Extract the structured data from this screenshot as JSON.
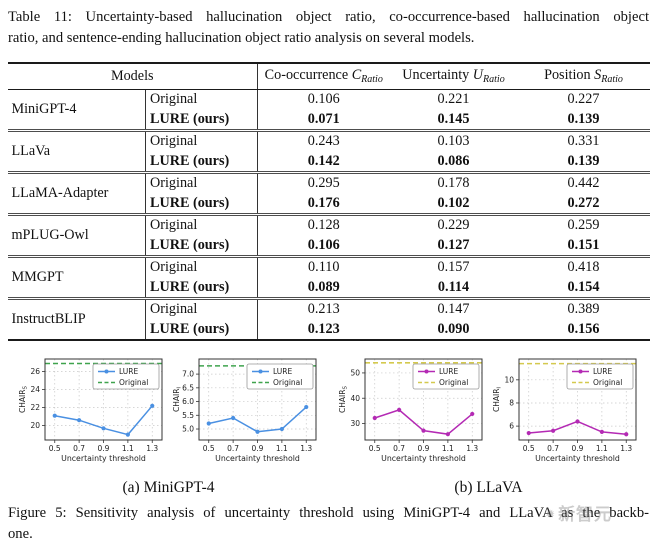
{
  "table_caption": {
    "lines": [
      "Table 11: Uncertainty-based hallucination object ratio, co-occurrence-based hallucination object",
      "ratio, and sentence-ending hallucination object ratio analysis on several models."
    ]
  },
  "table": {
    "models_header": "Models",
    "columns": [
      {
        "label": "Co-occurrence",
        "symbol": "C",
        "sub": "Ratio"
      },
      {
        "label": "Uncertainty",
        "symbol": "U",
        "sub": "Ratio"
      },
      {
        "label": "Position",
        "symbol": "S",
        "sub": "Ratio"
      }
    ],
    "variant_labels": [
      "Original",
      "LURE (ours)"
    ],
    "rows": [
      {
        "model": "MiniGPT-4",
        "original": [
          "0.106",
          "0.221",
          "0.227"
        ],
        "lure": [
          "0.071",
          "0.145",
          "0.139"
        ]
      },
      {
        "model": "LLaVa",
        "original": [
          "0.243",
          "0.103",
          "0.331"
        ],
        "lure": [
          "0.142",
          "0.086",
          "0.139"
        ]
      },
      {
        "model": "LLaMA-Adapter",
        "original": [
          "0.295",
          "0.178",
          "0.442"
        ],
        "lure": [
          "0.176",
          "0.102",
          "0.272"
        ]
      },
      {
        "model": "mPLUG-Owl",
        "original": [
          "0.128",
          "0.229",
          "0.259"
        ],
        "lure": [
          "0.106",
          "0.127",
          "0.151"
        ]
      },
      {
        "model": "MMGPT",
        "original": [
          "0.110",
          "0.157",
          "0.418"
        ],
        "lure": [
          "0.089",
          "0.114",
          "0.154"
        ]
      },
      {
        "model": "InstructBLIP",
        "original": [
          "0.213",
          "0.147",
          "0.389"
        ],
        "lure": [
          "0.123",
          "0.090",
          "0.156"
        ]
      }
    ]
  },
  "chart_data": [
    {
      "type": "line",
      "group": "a",
      "ylabel": "CHAIR",
      "ylabel_sub": "S",
      "xlabel": "Uncertainty threshold",
      "x": [
        0.5,
        0.7,
        0.9,
        1.1,
        1.3
      ],
      "yticks": [
        [
          20,
          "20"
        ],
        [
          22,
          "22"
        ],
        [
          24,
          "24"
        ],
        [
          26,
          "26"
        ]
      ],
      "ylim": [
        18.4,
        27.4
      ],
      "series": [
        {
          "name": "LURE",
          "values": [
            21.1,
            20.6,
            19.7,
            19.0,
            22.2
          ],
          "color": "#4a90e2"
        },
        {
          "name": "Original",
          "constant": 26.9,
          "color": "#3fa34d"
        }
      ],
      "legend_position": "upper right",
      "grid": true
    },
    {
      "type": "line",
      "group": "a",
      "ylabel": "CHAIR",
      "ylabel_sub": "I",
      "xlabel": "Uncertainty threshold",
      "x": [
        0.5,
        0.7,
        0.9,
        1.1,
        1.3
      ],
      "yticks": [
        [
          5.0,
          "5.0"
        ],
        [
          5.5,
          "5.5"
        ],
        [
          6.0,
          "6.0"
        ],
        [
          6.5,
          "6.5"
        ],
        [
          7.0,
          "7.0"
        ]
      ],
      "ylim": [
        4.6,
        7.55
      ],
      "series": [
        {
          "name": "LURE",
          "values": [
            5.2,
            5.4,
            4.9,
            5.0,
            5.8
          ],
          "color": "#4a90e2"
        },
        {
          "name": "Original",
          "constant": 7.3,
          "color": "#3fa34d"
        }
      ],
      "legend_position": "upper right",
      "grid": true
    },
    {
      "type": "line",
      "group": "b",
      "ylabel": "CHAIR",
      "ylabel_sub": "S",
      "xlabel": "Uncertainty threshold",
      "x": [
        0.5,
        0.7,
        0.9,
        1.1,
        1.3
      ],
      "yticks": [
        [
          30,
          "30"
        ],
        [
          40,
          "40"
        ],
        [
          50,
          "50"
        ]
      ],
      "ylim": [
        23.5,
        55.5
      ],
      "series": [
        {
          "name": "LURE",
          "values": [
            32.2,
            35.4,
            27.2,
            25.8,
            33.8
          ],
          "color": "#b42ab4"
        },
        {
          "name": "Original",
          "constant": 54.0,
          "color": "#d4c94e"
        }
      ],
      "legend_position": "upper right",
      "grid": true
    },
    {
      "type": "line",
      "group": "b",
      "ylabel": "CHAIR",
      "ylabel_sub": "I",
      "xlabel": "Uncertainty threshold",
      "x": [
        0.5,
        0.7,
        0.9,
        1.1,
        1.3
      ],
      "yticks": [
        [
          6,
          "6"
        ],
        [
          8,
          "8"
        ],
        [
          10,
          "10"
        ]
      ],
      "ylim": [
        4.8,
        11.8
      ],
      "series": [
        {
          "name": "LURE",
          "values": [
            5.4,
            5.6,
            6.4,
            5.5,
            5.3
          ],
          "color": "#b42ab4"
        },
        {
          "name": "Original",
          "constant": 11.4,
          "color": "#d4c94e"
        }
      ],
      "legend_position": "upper right",
      "grid": true
    }
  ],
  "subcaptions": [
    {
      "label": "(a) MiniGPT-4"
    },
    {
      "label": "(b) LLaVA"
    }
  ],
  "figure_caption": {
    "lines": [
      "Figure 5: Sensitivity analysis of uncertainty threshold using MiniGPT-4 and LLaVA as the backb-",
      "one."
    ]
  },
  "watermark": {
    "text": "新智元",
    "color": "#7a7a7a"
  }
}
